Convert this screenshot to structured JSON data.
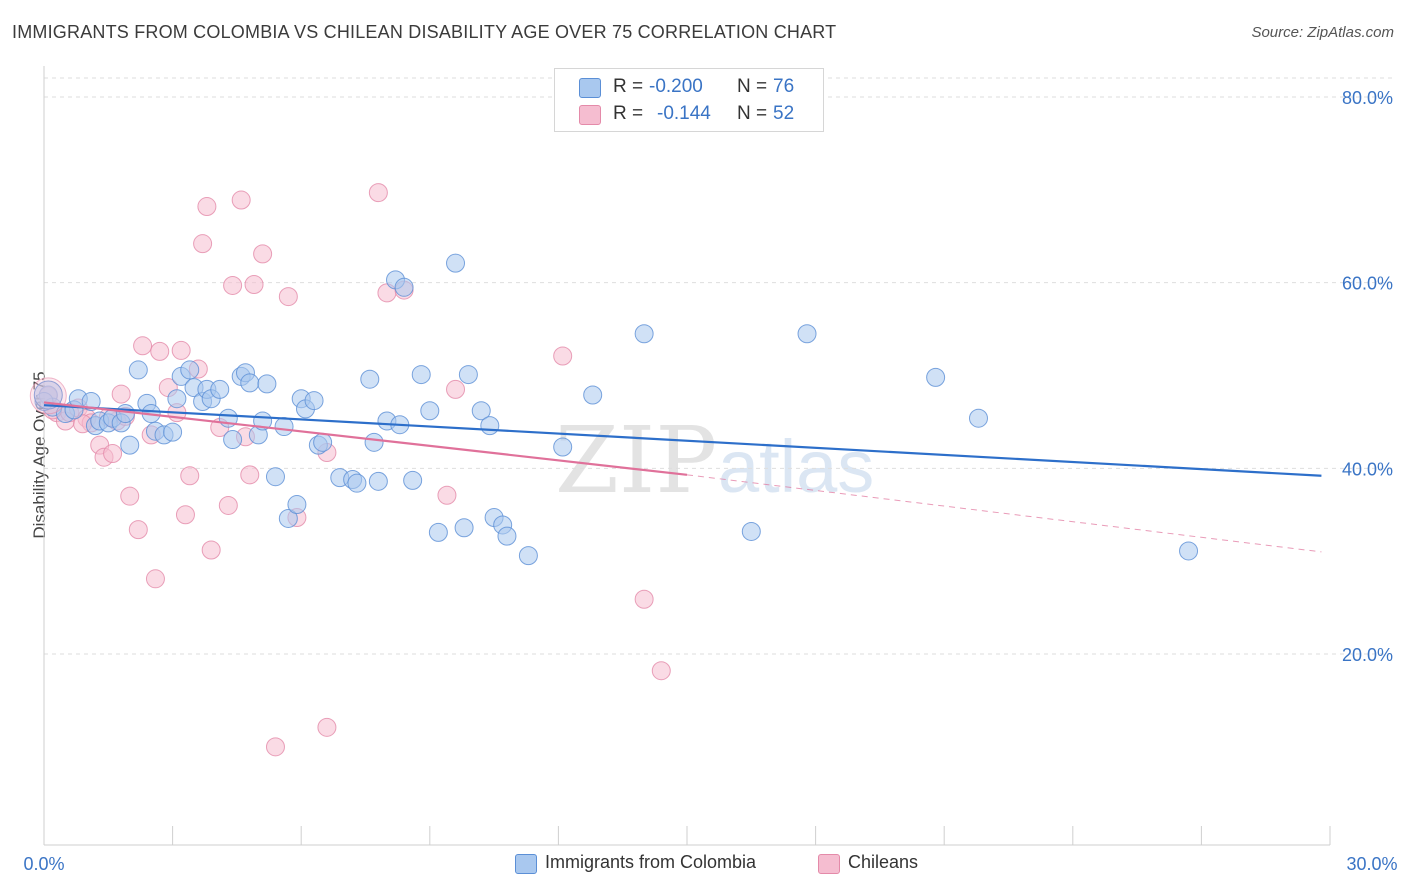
{
  "title": "IMMIGRANTS FROM COLOMBIA VS CHILEAN DISABILITY AGE OVER 75 CORRELATION CHART",
  "source": "Source: ZipAtlas.com",
  "watermark": {
    "zip": "ZIP",
    "atlas": "atlas"
  },
  "colors": {
    "blue_fill": "#a9c8ef",
    "blue_stroke": "#5b8fd6",
    "blue_line": "#2d6fca",
    "pink_fill": "#f5bdd0",
    "pink_stroke": "#e48aa9",
    "pink_line": "#e0719a",
    "axis_text": "#3a74c5",
    "grid": "#dedede"
  },
  "legend_top": {
    "rows": [
      {
        "label": "R =",
        "r": "-0.200",
        "n_label": "N =",
        "n": "76"
      },
      {
        "label": "R =",
        "r": "-0.144",
        "n_label": "N =",
        "n": "52"
      }
    ]
  },
  "legend_bottom": [
    "Immigrants from Colombia",
    "Chileans"
  ],
  "chart_data": {
    "type": "scatter",
    "title": "IMMIGRANTS FROM COLOMBIA VS CHILEAN DISABILITY AGE OVER 75 CORRELATION CHART",
    "xlabel": "",
    "ylabel": "Disability Age Over 75",
    "xlim": [
      0,
      30
    ],
    "ylim": [
      0,
      85
    ],
    "x_tick_labels": [
      "0.0%",
      "30.0%"
    ],
    "y_ticks": [
      20,
      40,
      60,
      80
    ],
    "y_tick_labels": [
      "20.0%",
      "40.0%",
      "60.0%",
      "80.0%"
    ],
    "grid": "horizontal dashed",
    "legend_placement": "top-center",
    "series": [
      {
        "name": "Immigrants from Colombia",
        "color": "#a9c8ef",
        "trend": {
          "x": [
            0,
            29.8
          ],
          "y": [
            46.8,
            39.2
          ]
        },
        "points": [
          [
            0.1,
            47.9
          ],
          [
            0.2,
            46.6
          ],
          [
            0.5,
            45.9
          ],
          [
            0.7,
            46.3
          ],
          [
            0.8,
            47.5
          ],
          [
            1.1,
            47.2
          ],
          [
            1.2,
            44.6
          ],
          [
            1.3,
            45.1
          ],
          [
            1.5,
            44.9
          ],
          [
            1.6,
            45.4
          ],
          [
            1.8,
            44.9
          ],
          [
            1.9,
            45.9
          ],
          [
            2.0,
            42.5
          ],
          [
            2.2,
            50.6
          ],
          [
            2.4,
            47.0
          ],
          [
            2.5,
            45.9
          ],
          [
            2.6,
            44.0
          ],
          [
            2.8,
            43.6
          ],
          [
            3.0,
            43.9
          ],
          [
            3.1,
            47.5
          ],
          [
            3.2,
            49.9
          ],
          [
            3.4,
            50.6
          ],
          [
            3.5,
            48.7
          ],
          [
            3.7,
            47.2
          ],
          [
            3.8,
            48.5
          ],
          [
            3.9,
            47.5
          ],
          [
            4.1,
            48.5
          ],
          [
            4.3,
            45.4
          ],
          [
            4.4,
            43.1
          ],
          [
            4.6,
            49.9
          ],
          [
            4.7,
            50.3
          ],
          [
            4.8,
            49.2
          ],
          [
            5.0,
            43.6
          ],
          [
            5.1,
            45.1
          ],
          [
            5.2,
            49.1
          ],
          [
            5.4,
            39.1
          ],
          [
            5.6,
            44.5
          ],
          [
            5.7,
            34.6
          ],
          [
            5.9,
            36.1
          ],
          [
            6.0,
            47.5
          ],
          [
            6.1,
            46.4
          ],
          [
            6.3,
            47.3
          ],
          [
            6.4,
            42.5
          ],
          [
            6.5,
            42.8
          ],
          [
            6.9,
            39.0
          ],
          [
            7.2,
            38.8
          ],
          [
            7.3,
            38.4
          ],
          [
            7.6,
            49.6
          ],
          [
            7.7,
            42.8
          ],
          [
            7.8,
            38.6
          ],
          [
            8.0,
            45.1
          ],
          [
            8.2,
            60.3
          ],
          [
            8.3,
            44.7
          ],
          [
            8.4,
            59.5
          ],
          [
            8.6,
            38.7
          ],
          [
            8.8,
            50.1
          ],
          [
            9.0,
            46.2
          ],
          [
            9.2,
            33.1
          ],
          [
            9.6,
            62.1
          ],
          [
            9.8,
            33.6
          ],
          [
            9.9,
            50.1
          ],
          [
            10.2,
            46.2
          ],
          [
            10.4,
            44.6
          ],
          [
            10.5,
            34.7
          ],
          [
            10.7,
            33.9
          ],
          [
            10.8,
            32.7
          ],
          [
            11.3,
            30.6
          ],
          [
            12.1,
            42.3
          ],
          [
            12.8,
            47.9
          ],
          [
            14.0,
            54.5
          ],
          [
            16.5,
            33.2
          ],
          [
            17.8,
            54.5
          ],
          [
            20.8,
            49.8
          ],
          [
            21.8,
            45.4
          ],
          [
            26.7,
            31.1
          ],
          [
            0.0,
            47.2
          ]
        ]
      },
      {
        "name": "Chileans",
        "color": "#f5bdd0",
        "trend": {
          "x": [
            0,
            15.0
          ],
          "y": [
            47.1,
            39.3
          ]
        },
        "trend_extension": {
          "x": [
            15.0,
            29.8
          ],
          "y": [
            39.3,
            31.0
          ]
        },
        "points": [
          [
            0.1,
            47.8
          ],
          [
            0.3,
            46.0
          ],
          [
            0.5,
            45.1
          ],
          [
            0.6,
            46.0
          ],
          [
            0.8,
            46.5
          ],
          [
            1.0,
            45.4
          ],
          [
            1.1,
            44.9
          ],
          [
            1.3,
            42.5
          ],
          [
            1.4,
            41.2
          ],
          [
            1.6,
            41.6
          ],
          [
            1.7,
            45.1
          ],
          [
            1.8,
            48.0
          ],
          [
            1.9,
            45.6
          ],
          [
            2.0,
            37.0
          ],
          [
            2.2,
            33.4
          ],
          [
            2.3,
            53.2
          ],
          [
            2.5,
            43.6
          ],
          [
            2.6,
            28.1
          ],
          [
            2.7,
            52.6
          ],
          [
            2.9,
            48.7
          ],
          [
            3.1,
            46.0
          ],
          [
            3.2,
            52.7
          ],
          [
            3.3,
            35.0
          ],
          [
            3.4,
            39.2
          ],
          [
            3.6,
            50.7
          ],
          [
            3.7,
            64.2
          ],
          [
            3.8,
            68.2
          ],
          [
            3.9,
            31.2
          ],
          [
            4.1,
            44.4
          ],
          [
            4.3,
            36.0
          ],
          [
            4.4,
            59.7
          ],
          [
            4.6,
            68.9
          ],
          [
            4.7,
            43.4
          ],
          [
            4.8,
            39.3
          ],
          [
            4.9,
            59.8
          ],
          [
            5.1,
            63.1
          ],
          [
            5.4,
            10.0
          ],
          [
            5.7,
            58.5
          ],
          [
            5.9,
            34.7
          ],
          [
            6.6,
            41.7
          ],
          [
            6.6,
            12.1
          ],
          [
            7.8,
            69.7
          ],
          [
            8.0,
            58.9
          ],
          [
            8.4,
            59.2
          ],
          [
            9.4,
            37.1
          ],
          [
            9.6,
            48.5
          ],
          [
            12.1,
            52.1
          ],
          [
            14.0,
            25.9
          ],
          [
            14.4,
            18.2
          ],
          [
            0.2,
            46.3
          ],
          [
            0.9,
            44.8
          ],
          [
            1.5,
            45.5
          ]
        ]
      }
    ]
  }
}
